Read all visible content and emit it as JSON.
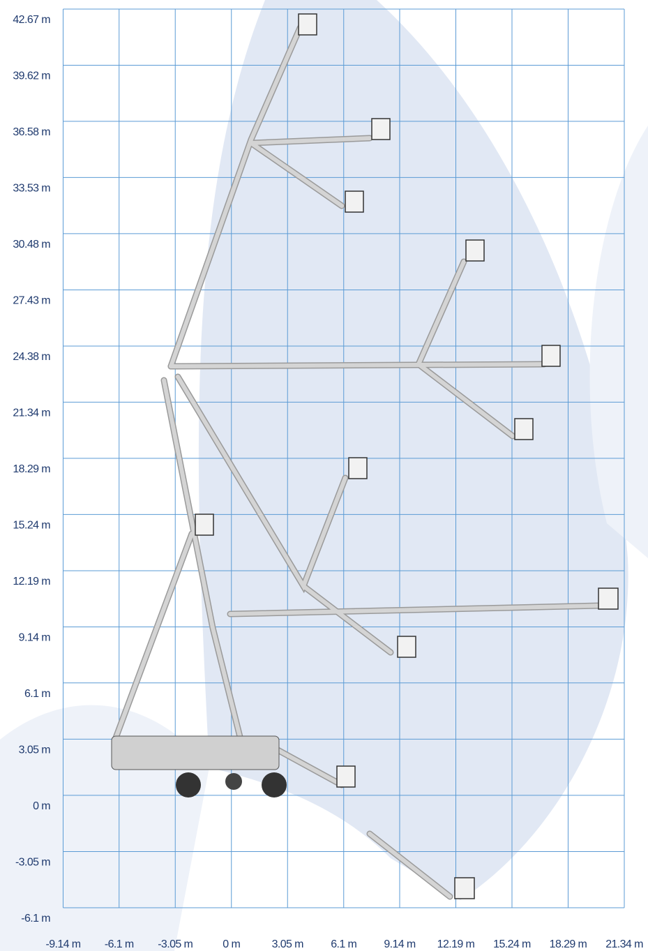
{
  "chart_data": {
    "type": "working-range",
    "xlim": [
      -9.14,
      21.34
    ],
    "ylim": [
      -6.1,
      42.67
    ],
    "xticks": [
      {
        "value": -9.14,
        "label": "-9.14 m"
      },
      {
        "value": -6.1,
        "label": "-6.1 m"
      },
      {
        "value": -3.05,
        "label": "-3.05 m"
      },
      {
        "value": 0,
        "label": "0 m"
      },
      {
        "value": 3.05,
        "label": "3.05 m"
      },
      {
        "value": 6.1,
        "label": "6.1 m"
      },
      {
        "value": 9.14,
        "label": "9.14 m"
      },
      {
        "value": 12.19,
        "label": "12.19 m"
      },
      {
        "value": 15.24,
        "label": "15.24 m"
      },
      {
        "value": 18.29,
        "label": "18.29 m"
      },
      {
        "value": 21.34,
        "label": "21.34 m"
      }
    ],
    "yticks": [
      {
        "value": -6.1,
        "label": "-6.1 m"
      },
      {
        "value": -3.05,
        "label": "-3.05 m"
      },
      {
        "value": 0,
        "label": "0 m"
      },
      {
        "value": 3.05,
        "label": "3.05 m"
      },
      {
        "value": 6.1,
        "label": "6.1 m"
      },
      {
        "value": 9.14,
        "label": "9.14 m"
      },
      {
        "value": 12.19,
        "label": "12.19 m"
      },
      {
        "value": 15.24,
        "label": "15.24 m"
      },
      {
        "value": 18.29,
        "label": "18.29 m"
      },
      {
        "value": 21.34,
        "label": "21.34 m"
      },
      {
        "value": 24.38,
        "label": "24.38 m"
      },
      {
        "value": 27.43,
        "label": "27.43 m"
      },
      {
        "value": 30.48,
        "label": "30.48 m"
      },
      {
        "value": 33.53,
        "label": "33.53 m"
      },
      {
        "value": 36.58,
        "label": "36.58 m"
      },
      {
        "value": 39.62,
        "label": "39.62 m"
      },
      {
        "value": 42.67,
        "label": "42.67 m"
      }
    ],
    "grid": true,
    "grid_color": "#5b9bd5"
  }
}
